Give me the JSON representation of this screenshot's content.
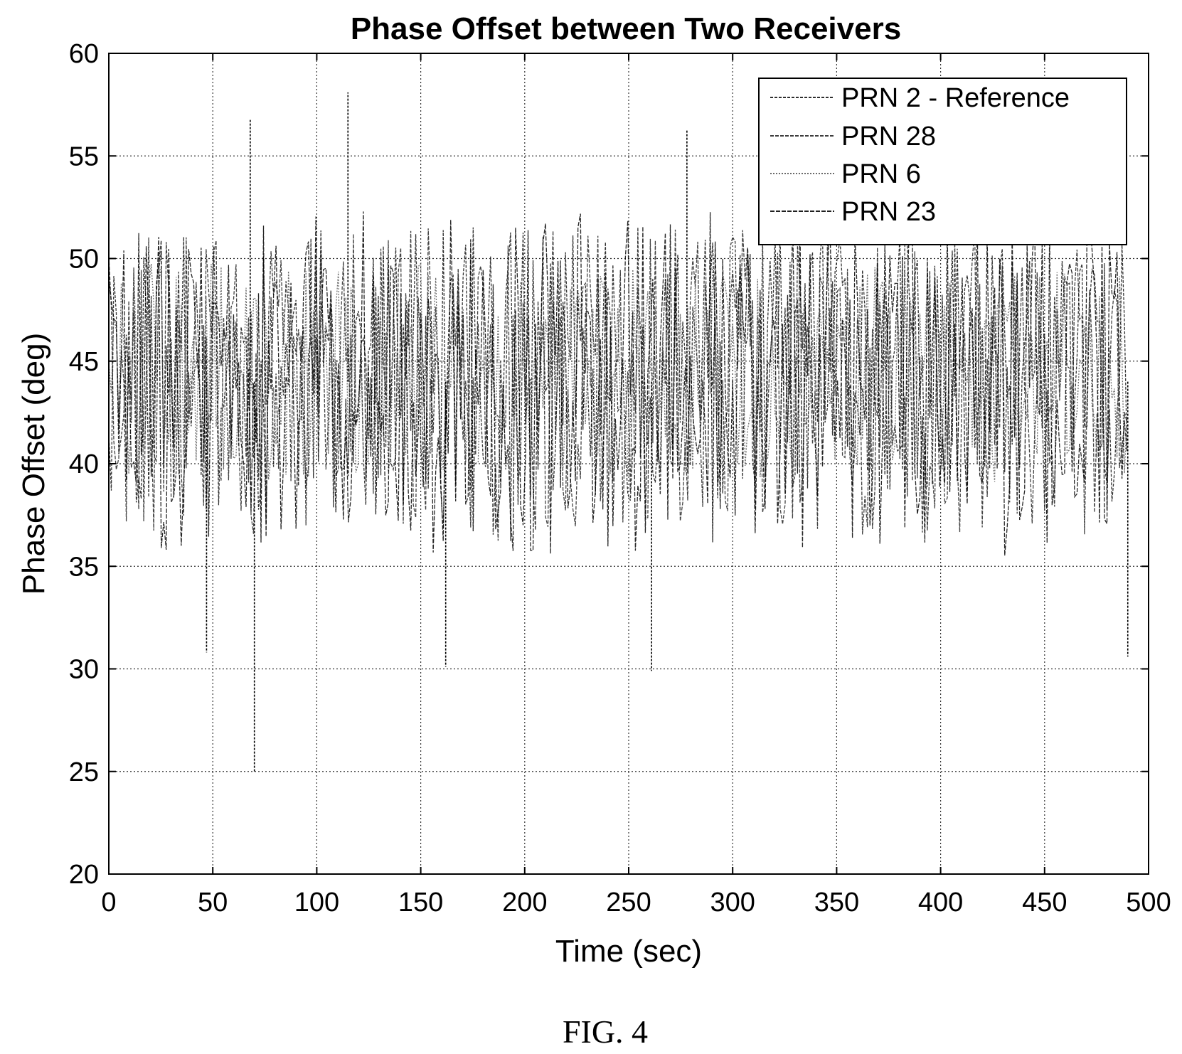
{
  "chart_data": {
    "type": "line",
    "title": "Phase Offset between Two Receivers",
    "xlabel": "Time (sec)",
    "ylabel": "Phase Offset (deg)",
    "xlim": [
      0,
      500
    ],
    "ylim": [
      20,
      60
    ],
    "xticks": [
      "0",
      "50",
      "100",
      "150",
      "200",
      "250",
      "300",
      "350",
      "400",
      "450",
      "500"
    ],
    "yticks": [
      "20",
      "25",
      "30",
      "35",
      "40",
      "45",
      "50",
      "55",
      "60"
    ],
    "grid": true,
    "legend_position": "top-right",
    "series": [
      {
        "name": "PRN 2 - Reference",
        "color": "#111111",
        "dash": "4,2",
        "x_end": 490,
        "y_mean": 44.5,
        "y_spread": 4.5,
        "seed": 11
      },
      {
        "name": "PRN 28",
        "color": "#222222",
        "dash": "5,2",
        "x_end": 490,
        "y_mean": 44.0,
        "y_spread": 5.0,
        "seed": 29
      },
      {
        "name": "PRN 6",
        "color": "#555555",
        "dash": "2,2",
        "x_end": 490,
        "y_mean": 44.5,
        "y_spread": 3.5,
        "seed": 47
      },
      {
        "name": "PRN 23",
        "color": "#000000",
        "dash": "6,2",
        "x_end": 490,
        "y_mean": 44.0,
        "y_spread": 5.5,
        "seed": 83
      }
    ],
    "extremes": [
      {
        "x": 70,
        "y": 25
      },
      {
        "x": 68,
        "y": 56.8
      },
      {
        "x": 115,
        "y": 58.1
      },
      {
        "x": 278,
        "y": 56.3
      },
      {
        "x": 162,
        "y": 30.1
      },
      {
        "x": 261,
        "y": 29.9
      },
      {
        "x": 47,
        "y": 30.8
      },
      {
        "x": 490,
        "y": 30.6
      }
    ]
  },
  "caption": "FIG. 4"
}
